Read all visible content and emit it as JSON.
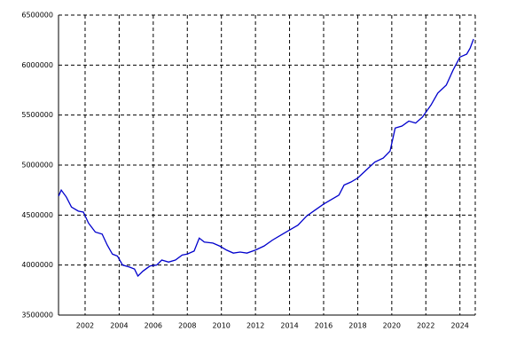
{
  "chart_data": {
    "type": "line",
    "x": [
      2000.45,
      2000.6,
      2000.9,
      2001.2,
      2001.6,
      2001.9,
      2002.2,
      2002.6,
      2003.0,
      2003.3,
      2003.6,
      2003.9,
      2004.2,
      2004.6,
      2004.9,
      2005.1,
      2005.4,
      2005.8,
      2006.2,
      2006.5,
      2006.9,
      2007.3,
      2007.7,
      2008.0,
      2008.4,
      2008.7,
      2009.0,
      2009.5,
      2009.9,
      2010.3,
      2010.7,
      2011.1,
      2011.5,
      2012.0,
      2012.5,
      2013.0,
      2013.5,
      2014.0,
      2014.5,
      2015.0,
      2015.5,
      2016.0,
      2016.5,
      2016.9,
      2017.2,
      2017.6,
      2018.0,
      2018.5,
      2019.0,
      2019.5,
      2019.9,
      2020.2,
      2020.6,
      2021.0,
      2021.4,
      2021.8,
      2022.3,
      2022.7,
      2023.2,
      2023.6,
      2024.0,
      2024.4,
      2024.6,
      2024.8
    ],
    "series": [
      {
        "color": "#0000cc",
        "values": [
          4690000,
          4750000,
          4680000,
          4580000,
          4540000,
          4530000,
          4420000,
          4330000,
          4310000,
          4200000,
          4110000,
          4090000,
          4000000,
          3980000,
          3960000,
          3890000,
          3940000,
          3990000,
          4000000,
          4050000,
          4030000,
          4050000,
          4100000,
          4110000,
          4140000,
          4270000,
          4230000,
          4220000,
          4190000,
          4150000,
          4120000,
          4130000,
          4120000,
          4150000,
          4190000,
          4250000,
          4300000,
          4350000,
          4400000,
          4490000,
          4550000,
          4610000,
          4660000,
          4700000,
          4800000,
          4830000,
          4870000,
          4950000,
          5030000,
          5070000,
          5140000,
          5370000,
          5390000,
          5440000,
          5420000,
          5480000,
          5600000,
          5720000,
          5800000,
          5950000,
          6080000,
          6110000,
          6170000,
          6260000
        ]
      }
    ],
    "xlim": [
      2000.44,
      2024.9
    ],
    "xticks": [
      2002,
      2004,
      2006,
      2008,
      2010,
      2012,
      2014,
      2016,
      2018,
      2020,
      2022,
      2024
    ],
    "ylim": [
      3500000,
      6500000
    ],
    "yticks": [
      3500000,
      4000000,
      4500000,
      5000000,
      5500000,
      6000000,
      6500000
    ],
    "grid": true
  }
}
